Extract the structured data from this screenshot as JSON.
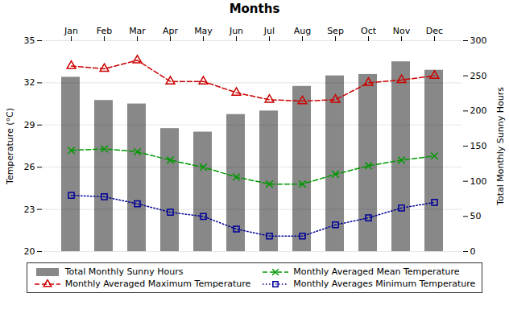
{
  "chart_data": {
    "type": "bar",
    "title": "Months",
    "categories": [
      "Jan",
      "Feb",
      "Mar",
      "Apr",
      "May",
      "Jun",
      "Jul",
      "Aug",
      "Sep",
      "Oct",
      "Nov",
      "Dec"
    ],
    "ylabel": "Temperature (°C)",
    "y2label": "Total Monthly Sunny Hours",
    "ylim": [
      20,
      35
    ],
    "yticks": [
      20,
      23,
      26,
      29,
      32,
      35
    ],
    "y2lim": [
      0,
      300
    ],
    "y2ticks": [
      0,
      50,
      100,
      150,
      200,
      250,
      300
    ],
    "grid": true,
    "legend": "bottom",
    "series": [
      {
        "name": "Total Monthly Sunny Hours",
        "type": "bar",
        "axis": "y2",
        "color": "#888888",
        "values": [
          248,
          215,
          210,
          175,
          170,
          195,
          200,
          235,
          250,
          252,
          270,
          258
        ]
      },
      {
        "name": "Monthly Averaged Maximum Temperature",
        "type": "line",
        "color": "#cc0000",
        "marker": "triangle",
        "line_style": "dashed",
        "values": [
          33.2,
          33.0,
          33.6,
          32.1,
          32.1,
          31.3,
          30.8,
          30.7,
          30.8,
          32.0,
          32.2,
          32.5
        ]
      },
      {
        "name": "Monthly Averaged Mean Temperature",
        "type": "line",
        "color": "#009900",
        "marker": "x",
        "line_style": "dashed",
        "values": [
          27.2,
          27.3,
          27.1,
          26.5,
          26.0,
          25.3,
          24.8,
          24.8,
          25.5,
          26.1,
          26.5,
          26.8
        ]
      },
      {
        "name": "Monthly Averages Minimum Temperature",
        "type": "line",
        "color": "#000099",
        "marker": "square",
        "line_style": "dotted",
        "values": [
          24.0,
          23.9,
          23.4,
          22.8,
          22.5,
          21.6,
          21.1,
          21.1,
          21.9,
          22.4,
          23.1,
          23.5
        ]
      }
    ]
  }
}
